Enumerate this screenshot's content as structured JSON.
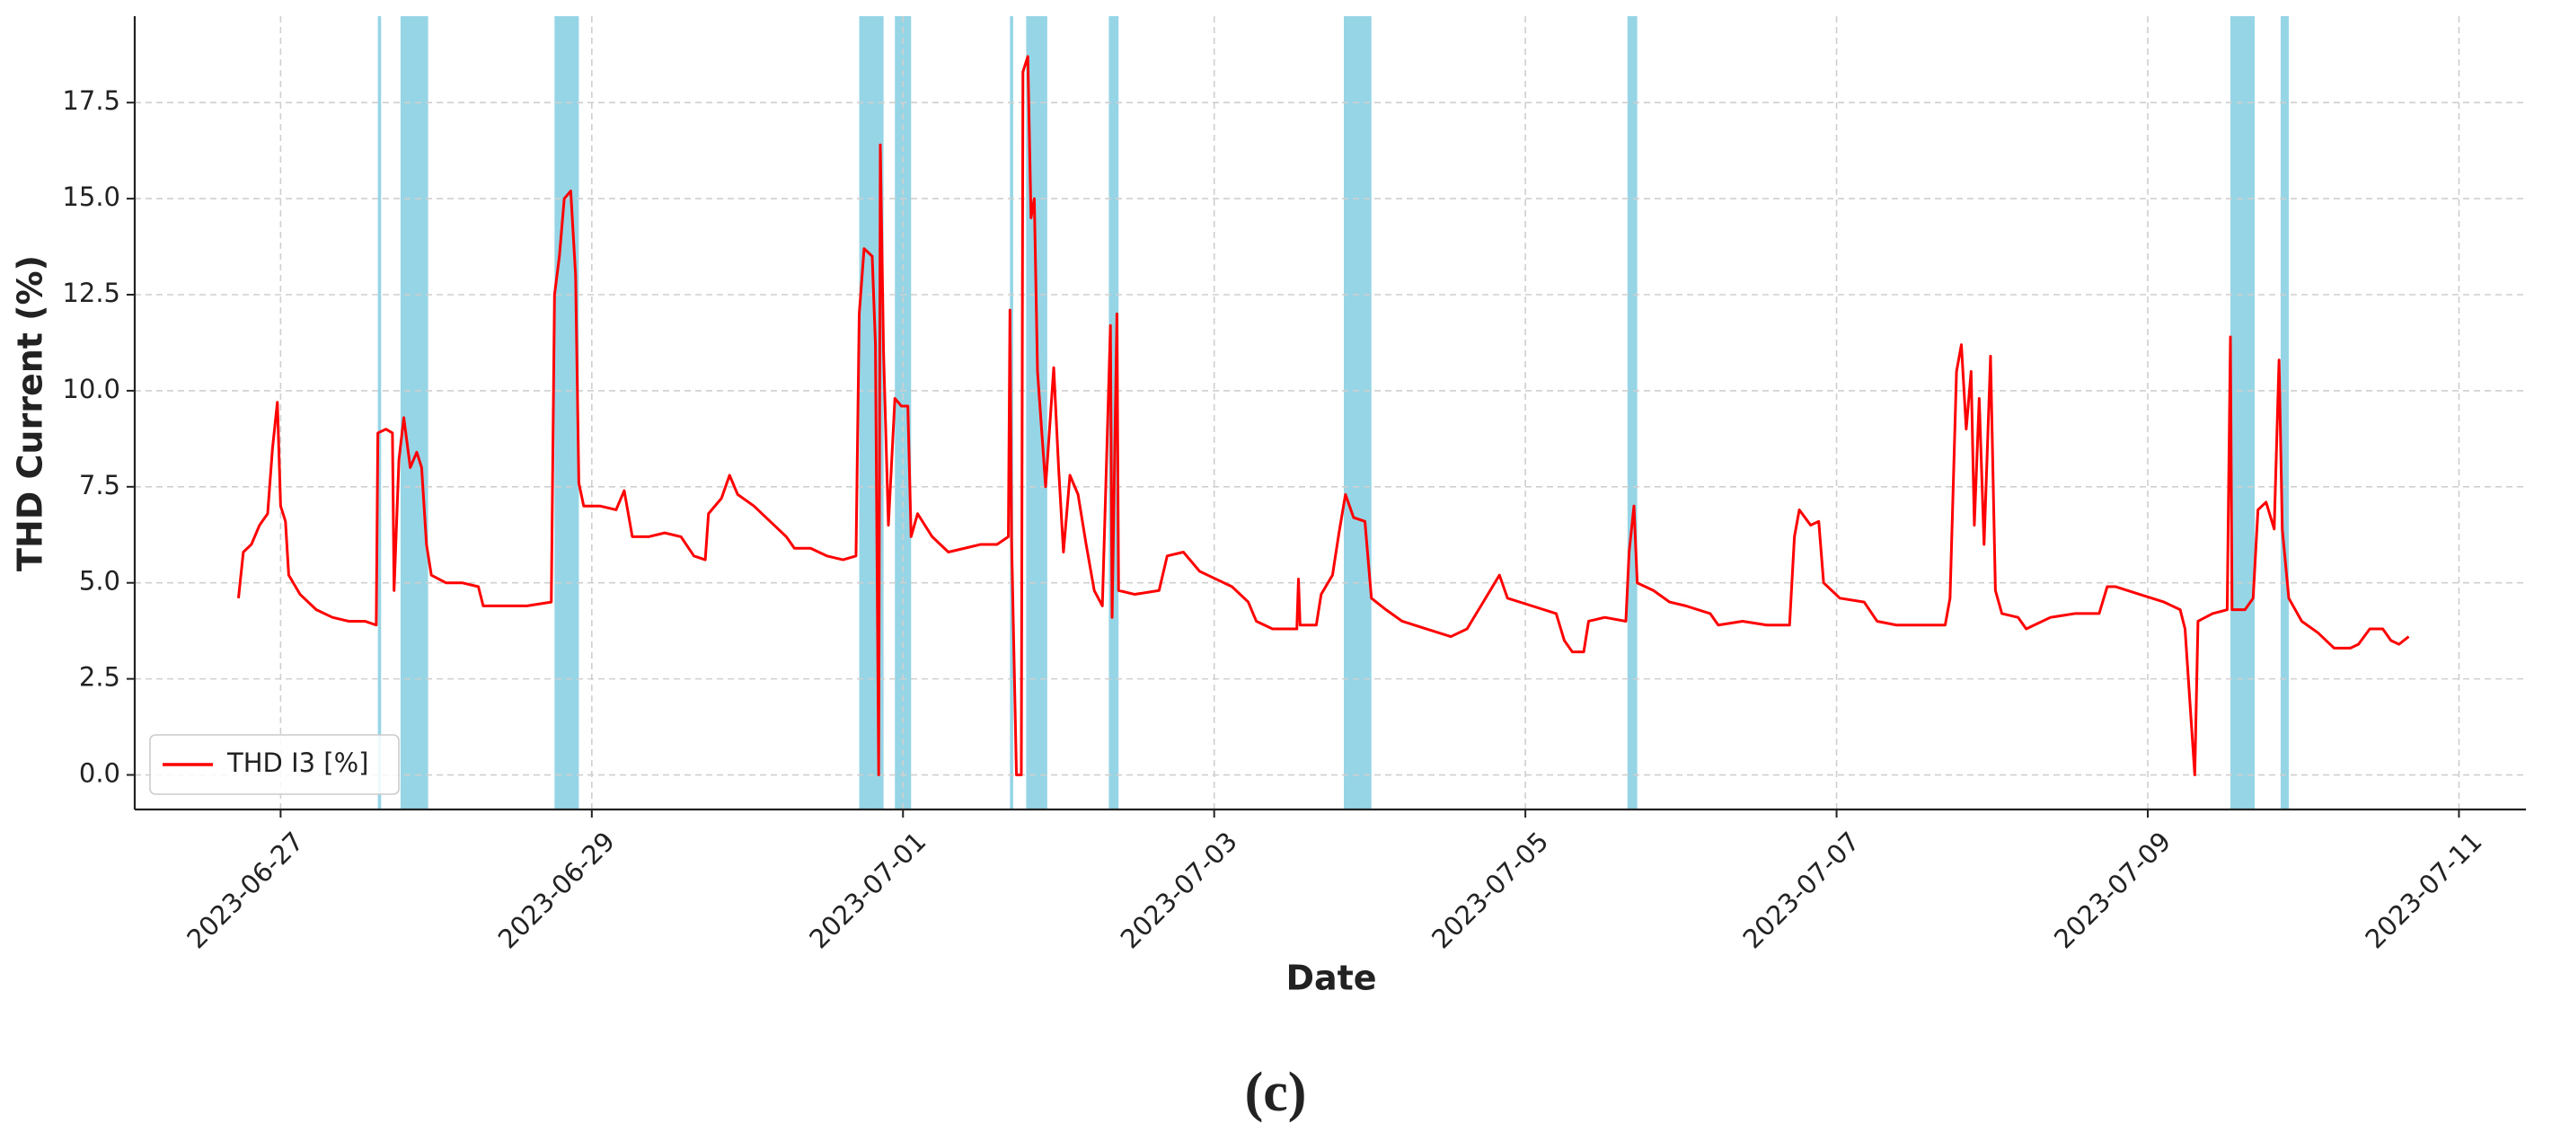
{
  "chart_data": {
    "type": "line",
    "xlabel": "Date",
    "ylabel": "THD Current (%)",
    "caption": "(c)",
    "xlim": [
      "2023-06-26T01:30",
      "2023-07-11T10:20"
    ],
    "xticks": [
      "2023-06-27",
      "2023-06-29",
      "2023-07-01",
      "2023-07-03",
      "2023-07-05",
      "2023-07-07",
      "2023-07-09",
      "2023-07-11"
    ],
    "ylim": [
      -0.9,
      19.75
    ],
    "yticks": [
      {
        "value": 0,
        "label": "0.0"
      },
      2.5,
      {
        "value": 5,
        "label": "5.0"
      },
      7.5,
      {
        "value": 10,
        "label": "10.0"
      },
      12.5,
      {
        "value": 15,
        "label": "15.0"
      },
      17.5
    ],
    "grid": true,
    "legend": "lower left",
    "highlight_color": "#95d5e6",
    "highlight_spans": [
      [
        "2023-06-27T15:00",
        "2023-06-27T15:30"
      ],
      [
        "2023-06-27T18:30",
        "2023-06-27T22:45"
      ],
      [
        "2023-06-28T18:15",
        "2023-06-28T22:00"
      ],
      [
        "2023-06-30T17:15",
        "2023-06-30T21:00"
      ],
      [
        "2023-06-30T22:45",
        "2023-07-01T01:15"
      ],
      [
        "2023-07-01T16:30",
        "2023-07-01T17:00"
      ],
      [
        "2023-07-01T19:00",
        "2023-07-01T22:15"
      ],
      [
        "2023-07-02T07:45",
        "2023-07-02T09:15"
      ],
      [
        "2023-07-03T20:00",
        "2023-07-04T00:15"
      ],
      [
        "2023-07-05T15:45",
        "2023-07-05T17:15"
      ],
      [
        "2023-07-09T12:45",
        "2023-07-09T16:30"
      ],
      [
        "2023-07-09T20:30",
        "2023-07-09T21:45"
      ]
    ],
    "x": [
      "2023-06-26T17:30",
      "2023-06-26T18:15",
      "2023-06-26T19:30",
      "2023-06-26T20:45",
      "2023-06-26T22:00",
      "2023-06-26T22:45",
      "2023-06-26T23:30",
      "2023-06-27T00:00",
      "2023-06-27T00:45",
      "2023-06-27T01:15",
      "2023-06-27T03:00",
      "2023-06-27T05:30",
      "2023-06-27T08:00",
      "2023-06-27T10:30",
      "2023-06-27T13:00",
      "2023-06-27T14:45",
      "2023-06-27T15:00",
      "2023-06-27T16:15",
      "2023-06-27T17:15",
      "2023-06-27T17:30",
      "2023-06-27T18:15",
      "2023-06-27T19:00",
      "2023-06-27T20:00",
      "2023-06-27T21:00",
      "2023-06-27T21:45",
      "2023-06-27T22:30",
      "2023-06-27T23:15",
      "2023-06-28T01:30",
      "2023-06-28T04:00",
      "2023-06-28T06:30",
      "2023-06-28T07:15",
      "2023-06-28T10:15",
      "2023-06-28T14:00",
      "2023-06-28T17:45",
      "2023-06-28T18:15",
      "2023-06-28T19:00",
      "2023-06-28T19:45",
      "2023-06-28T20:45",
      "2023-06-28T21:30",
      "2023-06-28T22:00",
      "2023-06-28T22:45",
      "2023-06-29T01:15",
      "2023-06-29T03:45",
      "2023-06-29T05:00",
      "2023-06-29T06:15",
      "2023-06-29T08:45",
      "2023-06-29T11:15",
      "2023-06-29T13:45",
      "2023-06-29T15:45",
      "2023-06-29T17:30",
      "2023-06-29T18:00",
      "2023-06-29T20:00",
      "2023-06-29T21:15",
      "2023-06-29T22:30",
      "2023-06-30T01:00",
      "2023-06-30T03:30",
      "2023-06-30T06:00",
      "2023-06-30T07:15",
      "2023-06-30T09:45",
      "2023-06-30T12:15",
      "2023-06-30T14:45",
      "2023-06-30T16:45",
      "2023-06-30T17:15",
      "2023-06-30T18:00",
      "2023-06-30T19:15",
      "2023-06-30T19:45",
      "2023-06-30T20:15",
      "2023-06-30T20:30",
      "2023-06-30T21:00",
      "2023-06-30T21:45",
      "2023-06-30T22:45",
      "2023-06-30T23:45",
      "2023-07-01T00:45",
      "2023-07-01T01:15",
      "2023-07-01T02:15",
      "2023-07-01T04:30",
      "2023-07-01T07:00",
      "2023-07-01T09:30",
      "2023-07-01T12:00",
      "2023-07-01T14:30",
      "2023-07-01T16:15",
      "2023-07-01T16:30",
      "2023-07-01T16:45",
      "2023-07-01T17:30",
      "2023-07-01T18:15",
      "2023-07-01T18:30",
      "2023-07-01T19:15",
      "2023-07-01T19:45",
      "2023-07-01T20:15",
      "2023-07-01T20:45",
      "2023-07-01T22:00",
      "2023-07-01T23:15",
      "2023-07-02T00:00",
      "2023-07-02T00:45",
      "2023-07-02T01:45",
      "2023-07-02T03:00",
      "2023-07-02T04:15",
      "2023-07-02T05:30",
      "2023-07-02T06:45",
      "2023-07-02T08:00",
      "2023-07-02T08:15",
      "2023-07-02T09:00",
      "2023-07-02T09:15",
      "2023-07-02T11:45",
      "2023-07-02T15:30",
      "2023-07-02T16:45",
      "2023-07-02T19:15",
      "2023-07-02T21:45",
      "2023-07-03T00:15",
      "2023-07-03T02:45",
      "2023-07-03T05:15",
      "2023-07-03T06:30",
      "2023-07-03T09:00",
      "2023-07-03T12:45",
      "2023-07-03T13:00",
      "2023-07-03T13:15",
      "2023-07-03T15:45",
      "2023-07-03T16:30",
      "2023-07-03T18:15",
      "2023-07-03T19:15",
      "2023-07-03T20:15",
      "2023-07-03T21:30",
      "2023-07-03T23:15",
      "2023-07-04T00:15",
      "2023-07-04T02:30",
      "2023-07-04T05:00",
      "2023-07-04T08:45",
      "2023-07-04T12:30",
      "2023-07-04T15:00",
      "2023-07-04T17:30",
      "2023-07-04T20:00",
      "2023-07-04T21:15",
      "2023-07-05T01:00",
      "2023-07-05T04:45",
      "2023-07-05T06:00",
      "2023-07-05T07:15",
      "2023-07-05T09:00",
      "2023-07-05T09:45",
      "2023-07-05T12:15",
      "2023-07-05T15:30",
      "2023-07-05T16:00",
      "2023-07-05T16:45",
      "2023-07-05T17:15",
      "2023-07-05T19:45",
      "2023-07-05T22:15",
      "2023-07-06T00:45",
      "2023-07-06T04:30",
      "2023-07-06T05:45",
      "2023-07-06T09:30",
      "2023-07-06T13:15",
      "2023-07-06T16:45",
      "2023-07-06T17:30",
      "2023-07-06T18:15",
      "2023-07-06T20:00",
      "2023-07-06T21:15",
      "2023-07-06T22:00",
      "2023-07-07T00:30",
      "2023-07-07T04:15",
      "2023-07-07T06:15",
      "2023-07-07T09:15",
      "2023-07-07T13:00",
      "2023-07-07T16:45",
      "2023-07-07T17:30",
      "2023-07-07T18:30",
      "2023-07-07T19:15",
      "2023-07-07T20:00",
      "2023-07-07T20:45",
      "2023-07-07T21:15",
      "2023-07-07T22:00",
      "2023-07-07T22:45",
      "2023-07-07T23:45",
      "2023-07-08T00:30",
      "2023-07-08T01:30",
      "2023-07-08T04:00",
      "2023-07-08T05:15",
      "2023-07-08T09:00",
      "2023-07-08T12:45",
      "2023-07-08T16:30",
      "2023-07-08T17:45",
      "2023-07-08T19:00",
      "2023-07-08T22:45",
      "2023-07-09T02:30",
      "2023-07-09T05:00",
      "2023-07-09T05:45",
      "2023-07-09T07:15",
      "2023-07-09T07:45",
      "2023-07-09T10:00",
      "2023-07-09T12:15",
      "2023-07-09T12:45",
      "2023-07-09T13:00",
      "2023-07-09T15:00",
      "2023-07-09T16:15",
      "2023-07-09T17:00",
      "2023-07-09T18:15",
      "2023-07-09T19:30",
      "2023-07-09T20:15",
      "2023-07-09T20:45",
      "2023-07-09T21:45",
      "2023-07-09T23:45",
      "2023-07-10T02:15",
      "2023-07-10T04:45",
      "2023-07-10T07:15",
      "2023-07-10T08:30",
      "2023-07-10T10:15",
      "2023-07-10T12:15",
      "2023-07-10T13:30",
      "2023-07-10T14:45",
      "2023-07-10T16:15"
    ],
    "series": [
      {
        "name": "THD I3 [%]",
        "color": "#ff0000",
        "values": [
          4.6,
          5.8,
          6.0,
          6.5,
          6.8,
          8.5,
          9.7,
          7.0,
          6.6,
          5.2,
          4.7,
          4.3,
          4.1,
          4.0,
          4.0,
          3.9,
          8.9,
          9.0,
          8.9,
          4.8,
          8.2,
          9.3,
          8.0,
          8.4,
          8.0,
          6.0,
          5.2,
          5.0,
          5.0,
          4.9,
          4.4,
          4.4,
          4.4,
          4.5,
          12.5,
          13.5,
          15.0,
          15.2,
          13.0,
          7.6,
          7.0,
          7.0,
          6.9,
          7.4,
          6.2,
          6.2,
          6.3,
          6.2,
          5.7,
          5.6,
          6.8,
          7.2,
          7.8,
          7.3,
          7.0,
          6.6,
          6.2,
          5.9,
          5.9,
          5.7,
          5.6,
          5.7,
          12.0,
          13.7,
          13.5,
          11.2,
          0.0,
          16.4,
          11.0,
          6.5,
          9.8,
          9.6,
          9.6,
          6.2,
          6.8,
          6.2,
          5.8,
          5.9,
          6.0,
          6.0,
          6.2,
          12.1,
          6.1,
          0.0,
          0.0,
          18.3,
          18.7,
          14.5,
          15.0,
          10.5,
          7.5,
          10.6,
          8.0,
          5.8,
          7.8,
          7.3,
          6.0,
          4.8,
          4.4,
          11.7,
          4.1,
          12.0,
          4.8,
          4.7,
          4.8,
          5.7,
          5.8,
          5.3,
          5.1,
          4.9,
          4.5,
          4.0,
          3.8,
          3.8,
          5.1,
          3.9,
          3.9,
          4.7,
          5.2,
          6.3,
          7.3,
          6.7,
          6.6,
          4.6,
          4.3,
          4.0,
          3.8,
          3.6,
          3.8,
          4.5,
          5.2,
          4.6,
          4.4,
          4.2,
          3.5,
          3.2,
          3.2,
          4.0,
          4.1,
          4.0,
          5.8,
          7.0,
          5.0,
          4.8,
          4.5,
          4.4,
          4.2,
          3.9,
          4.0,
          3.9,
          3.9,
          6.2,
          6.9,
          6.5,
          6.6,
          5.0,
          4.6,
          4.5,
          4.0,
          3.9,
          3.9,
          3.9,
          4.6,
          10.5,
          11.2,
          9.0,
          10.5,
          6.5,
          9.8,
          6.0,
          10.9,
          4.8,
          4.2,
          4.1,
          3.8,
          4.1,
          4.2,
          4.2,
          4.9,
          4.9,
          4.7,
          4.5,
          4.3,
          3.8,
          0.0,
          4.0,
          4.2,
          4.3,
          11.4,
          4.3,
          4.3,
          4.6,
          6.9,
          7.1,
          6.4,
          10.8,
          6.4,
          4.6,
          4.0,
          3.7,
          3.3,
          3.3,
          3.4,
          3.8,
          3.8,
          3.5,
          3.4,
          3.6
        ]
      }
    ]
  }
}
